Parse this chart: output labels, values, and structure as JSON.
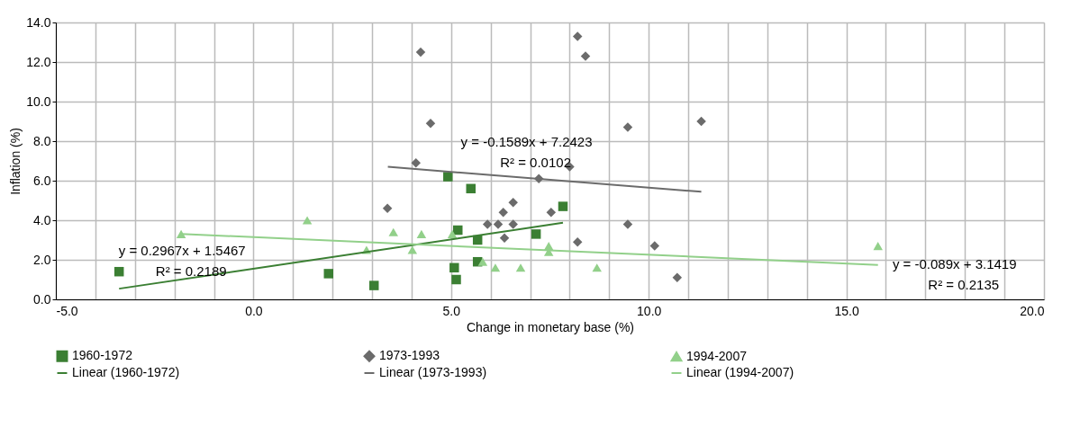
{
  "chart_data": {
    "type": "scatter",
    "xlabel": "Change in monetary base (%)",
    "ylabel": "Inflation (%)",
    "xlim": [
      -5,
      20
    ],
    "ylim": [
      0,
      14
    ],
    "xticks": [
      {
        "value": -5,
        "label": "-5.0"
      },
      {
        "value": -4,
        "label": null
      },
      {
        "value": -3,
        "label": null
      },
      {
        "value": -2,
        "label": null
      },
      {
        "value": -1,
        "label": null
      },
      {
        "value": 0,
        "label": "0.0"
      },
      {
        "value": 1,
        "label": null
      },
      {
        "value": 2,
        "label": null
      },
      {
        "value": 3,
        "label": null
      },
      {
        "value": 4,
        "label": null
      },
      {
        "value": 5,
        "label": "5.0"
      },
      {
        "value": 6,
        "label": null
      },
      {
        "value": 7,
        "label": null
      },
      {
        "value": 8,
        "label": null
      },
      {
        "value": 9,
        "label": null
      },
      {
        "value": 10,
        "label": "10.0"
      },
      {
        "value": 11,
        "label": null
      },
      {
        "value": 12,
        "label": null
      },
      {
        "value": 13,
        "label": null
      },
      {
        "value": 14,
        "label": null
      },
      {
        "value": 15,
        "label": "15.0"
      },
      {
        "value": 16,
        "label": null
      },
      {
        "value": 17,
        "label": null
      },
      {
        "value": 18,
        "label": null
      },
      {
        "value": 19,
        "label": null
      },
      {
        "value": 20,
        "label": "20.0"
      }
    ],
    "yticks": [
      {
        "value": 0,
        "label": "0.0"
      },
      {
        "value": 2,
        "label": "2.0"
      },
      {
        "value": 4,
        "label": "4.0"
      },
      {
        "value": 6,
        "label": "6.0"
      },
      {
        "value": 8,
        "label": "8.0"
      },
      {
        "value": 10,
        "label": "10.0"
      },
      {
        "value": 12,
        "label": "12.0"
      },
      {
        "value": 14,
        "label": "14.0"
      }
    ],
    "grid": true,
    "legend": "bottom",
    "series": [
      {
        "name": "1960-1972",
        "marker": "square",
        "color": "#3b7f33",
        "x": [
          -3.4,
          1.9,
          3.05,
          4.92,
          5.5,
          5.17,
          5.67,
          5.08,
          5.13,
          5.67,
          7.15,
          7.83
        ],
        "values": [
          1.4,
          1.3,
          0.7,
          6.2,
          5.6,
          3.5,
          3.0,
          1.6,
          1.0,
          1.9,
          3.3,
          4.7
        ]
      },
      {
        "name": "1973-1993",
        "marker": "diamond",
        "color": "#6b6b6b",
        "x": [
          4.23,
          8.2,
          8.4,
          4.48,
          9.47,
          11.33,
          4.11,
          8.0,
          7.22,
          3.39,
          6.57,
          6.32,
          6.19,
          5.92,
          6.57,
          7.53,
          6.35,
          8.2,
          9.47,
          10.15,
          10.72
        ],
        "values": [
          12.5,
          13.3,
          12.3,
          8.9,
          8.7,
          9.0,
          6.9,
          6.7,
          6.1,
          4.6,
          4.9,
          4.4,
          3.8,
          3.8,
          3.8,
          4.4,
          3.1,
          2.9,
          3.8,
          2.7,
          1.1
        ]
      },
      {
        "name": "1994-2007",
        "marker": "triangle",
        "color": "#92d08a",
        "x": [
          -1.83,
          1.36,
          2.86,
          3.54,
          4.02,
          4.25,
          5.03,
          5.8,
          6.12,
          6.76,
          7.47,
          7.47,
          8.69,
          15.8
        ],
        "values": [
          3.3,
          4.0,
          2.5,
          3.4,
          2.5,
          3.3,
          3.3,
          1.9,
          1.6,
          1.6,
          2.7,
          2.4,
          1.6,
          2.7
        ]
      },
      {
        "name": "Linear (1960-1972)",
        "type": "line",
        "color": "#3b7f33",
        "x": [
          -3.4,
          7.83
        ],
        "values": [
          0.54,
          3.87
        ]
      },
      {
        "name": "Linear (1973-1993)",
        "type": "line",
        "color": "#6b6b6b",
        "x": [
          3.4,
          11.33
        ],
        "values": [
          6.7,
          5.44
        ]
      },
      {
        "name": "Linear (1994-2007)",
        "type": "line",
        "color": "#92d08a",
        "x": [
          -1.83,
          15.8
        ],
        "values": [
          3.31,
          1.74
        ]
      }
    ],
    "annotations": [
      "y = 0.2967x + 1.5467",
      "R² = 0.2189",
      "y = -0.1589x + 7.2423",
      "R² = 0.0102",
      "y = -0.089x + 3.1419",
      "R² = 0.2135"
    ]
  }
}
